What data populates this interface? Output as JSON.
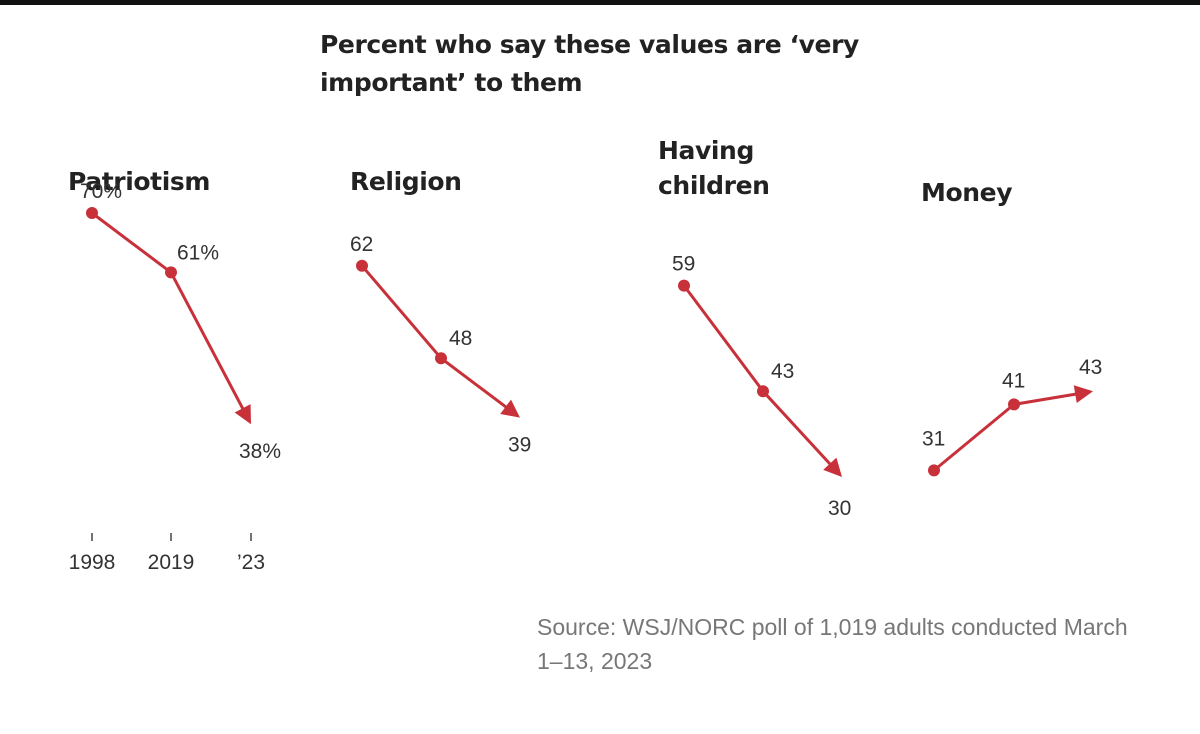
{
  "chart_data": {
    "type": "line",
    "title": "Percent who say these values are ‘very important’ to them",
    "x": [
      "1998",
      "2019",
      "’23"
    ],
    "line_color": "#c8313a",
    "panels": [
      {
        "title": [
          "Patriotism"
        ],
        "values": [
          70,
          61,
          38
        ],
        "labels": [
          "70%",
          "61%",
          "38%"
        ],
        "end_marker": "arrow"
      },
      {
        "title": [
          "Religion"
        ],
        "values": [
          62,
          48,
          39
        ],
        "labels": [
          "62",
          "48",
          "39"
        ],
        "end_marker": "arrow"
      },
      {
        "title": [
          "Having",
          "children"
        ],
        "values": [
          59,
          43,
          30
        ],
        "labels": [
          "59",
          "43",
          "30"
        ],
        "end_marker": "arrow"
      },
      {
        "title": [
          "Money"
        ],
        "values": [
          31,
          41,
          43
        ],
        "labels": [
          "31",
          "41",
          "43"
        ],
        "end_marker": "arrow"
      }
    ],
    "source": "Source: WSJ/NORC poll of 1,019 adults conducted March 1–13, 2023"
  }
}
